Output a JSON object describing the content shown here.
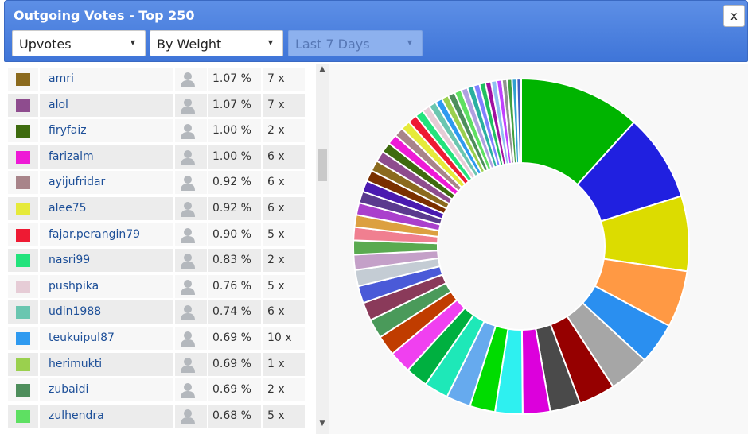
{
  "header": {
    "title": "Outgoing Votes - Top 250",
    "close_label": "x"
  },
  "filters": {
    "vote_type": "Upvotes",
    "sort": "By Weight",
    "range": "Last 7 Days"
  },
  "rows": [
    {
      "color": "#8b6a1e",
      "name": "amri",
      "pct": "1.07 %",
      "count": "7 x"
    },
    {
      "color": "#8e4c8e",
      "name": "alol",
      "pct": "1.07 %",
      "count": "7 x"
    },
    {
      "color": "#3e6b0e",
      "name": "firyfaiz",
      "pct": "1.00 %",
      "count": "2 x"
    },
    {
      "color": "#ee1ad6",
      "name": "farizalm",
      "pct": "1.00 %",
      "count": "6 x"
    },
    {
      "color": "#a8848a",
      "name": "ayijufridar",
      "pct": "0.92 %",
      "count": "6 x"
    },
    {
      "color": "#e6ea3a",
      "name": "alee75",
      "pct": "0.92 %",
      "count": "6 x"
    },
    {
      "color": "#ee1a33",
      "name": "fajar.perangin79",
      "pct": "0.90 %",
      "count": "5 x"
    },
    {
      "color": "#22e37c",
      "name": "nasri99",
      "pct": "0.83 %",
      "count": "2 x"
    },
    {
      "color": "#e6ccd6",
      "name": "pushpika",
      "pct": "0.76 %",
      "count": "5 x"
    },
    {
      "color": "#6ac6b0",
      "name": "udin1988",
      "pct": "0.74 %",
      "count": "6 x"
    },
    {
      "color": "#2f9af0",
      "name": "teukuipul87",
      "pct": "0.69 %",
      "count": "10 x"
    },
    {
      "color": "#9ad04e",
      "name": "herimukti",
      "pct": "0.69 %",
      "count": "1 x"
    },
    {
      "color": "#4e8e5c",
      "name": "zubaidi",
      "pct": "0.69 %",
      "count": "2 x"
    },
    {
      "color": "#5ee062",
      "name": "zulhendra",
      "pct": "0.68 %",
      "count": "5 x"
    }
  ],
  "icons": {
    "person": "person-icon",
    "close": "close-icon",
    "caret": "caret-down-icon",
    "scroll_up": "scroll-up-arrow-icon",
    "scroll_down": "scroll-down-arrow-icon"
  },
  "chart_data": {
    "type": "pie",
    "donut": true,
    "values": [
      12.0,
      8.6,
      7.4,
      5.6,
      4.1,
      4.0,
      3.6,
      3.0,
      2.7,
      2.7,
      2.5,
      2.4,
      2.4,
      2.2,
      2.2,
      2.0,
      1.9,
      1.8,
      1.7,
      1.6,
      1.5,
      1.4,
      1.3,
      1.2,
      1.2,
      1.15,
      1.1,
      1.1,
      1.07,
      1.07,
      1.0,
      1.0,
      0.92,
      0.92,
      0.9,
      0.83,
      0.76,
      0.74,
      0.69,
      0.69,
      0.69,
      0.68,
      0.65,
      0.62,
      0.6,
      0.58,
      0.56,
      0.55,
      0.53,
      0.5,
      0.48,
      0.46,
      0.44
    ],
    "colors": [
      "#00b400",
      "#2020e0",
      "#dcdc00",
      "#ff9944",
      "#2a8ff0",
      "#a6a6a6",
      "#960000",
      "#4a4a4a",
      "#dc00dc",
      "#2ef0f0",
      "#00dc00",
      "#66aaee",
      "#1ee8b8",
      "#00b040",
      "#f040f0",
      "#c03c00",
      "#4a9a5a",
      "#8a3a5a",
      "#4a5ad8",
      "#c4ccd4",
      "#c4a0c8",
      "#5aaa50",
      "#f07f90",
      "#dca040",
      "#aa40cc",
      "#5a3a8e",
      "#4a1ab0",
      "#7a3000",
      "#8b6a1e",
      "#8e4c8e",
      "#3e6b0e",
      "#ee1ad6",
      "#a8848a",
      "#e6ea3a",
      "#ee1a33",
      "#22e37c",
      "#e6ccd6",
      "#6ac6b0",
      "#2f9af0",
      "#9ad04e",
      "#4e8e5c",
      "#5ee062",
      "#b0a0e0",
      "#2ab0a0",
      "#8080ff",
      "#20c060",
      "#a010a0",
      "#90c0f0",
      "#c040ff",
      "#909090",
      "#40a040",
      "#30a0d0",
      "#4060c0"
    ]
  }
}
